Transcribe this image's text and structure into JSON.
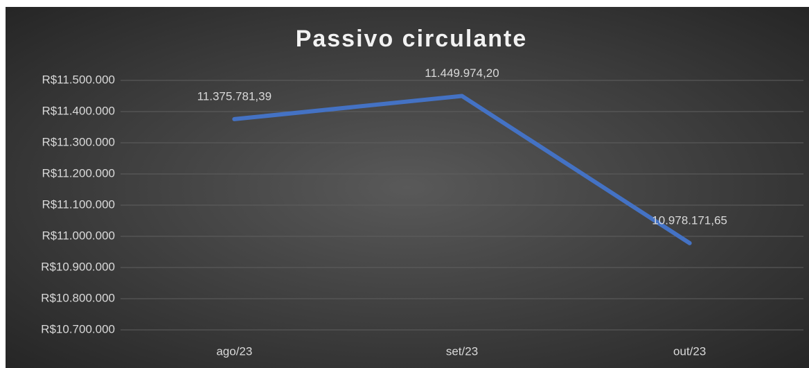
{
  "chart_data": {
    "type": "line",
    "title": "Passivo circulante",
    "categories": [
      "ago/23",
      "set/23",
      "out/23"
    ],
    "series": [
      {
        "name": "Passivo circulante",
        "color": "#4472c4",
        "values": [
          11375781.39,
          11449974.2,
          10978171.65
        ],
        "value_labels": [
          "11.375.781,39",
          "11.449.974,20",
          "10.978.171,65"
        ]
      }
    ],
    "ylim": [
      10700000,
      11500000
    ],
    "yticks": [
      {
        "value": 10700000,
        "label": "R$10.700.000"
      },
      {
        "value": 10800000,
        "label": "R$10.800.000"
      },
      {
        "value": 10900000,
        "label": "R$10.900.000"
      },
      {
        "value": 11000000,
        "label": "R$11.000.000"
      },
      {
        "value": 11100000,
        "label": "R$11.100.000"
      },
      {
        "value": 11200000,
        "label": "R$11.200.000"
      },
      {
        "value": 11300000,
        "label": "R$11.300.000"
      },
      {
        "value": 11400000,
        "label": "R$11.400.000"
      },
      {
        "value": 11500000,
        "label": "R$11.500.000"
      }
    ],
    "grid": true
  }
}
